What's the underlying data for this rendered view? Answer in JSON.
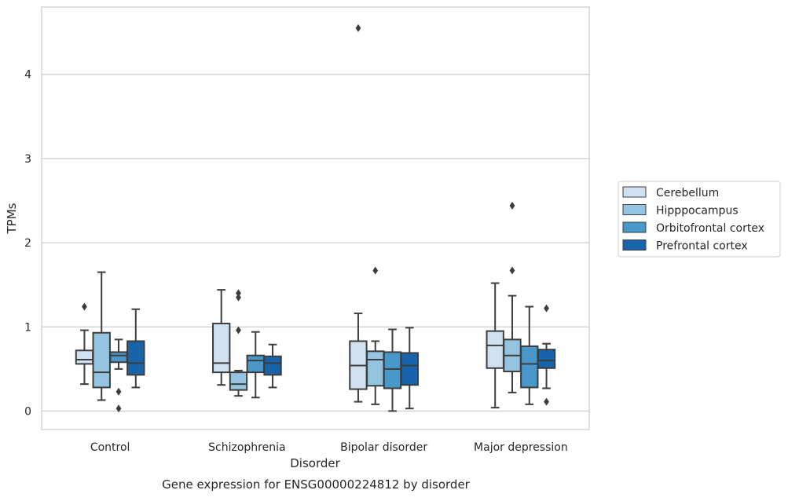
{
  "chart_data": {
    "type": "box",
    "caption": "Gene expression for ENSG00000224812 by disorder",
    "xlabel": "Disorder",
    "ylabel": "TPMs",
    "ylim": [
      -0.22,
      4.8
    ],
    "yticks": [
      0,
      1,
      2,
      3,
      4
    ],
    "grid": true,
    "legend_position": "right",
    "categories": [
      "Control",
      "Schizophrenia",
      "Bipolar disorder",
      "Major depression"
    ],
    "series": [
      {
        "name": "Cerebellum",
        "color": "#d0e1f2",
        "boxes": [
          {
            "whisker_low": 0.32,
            "q1": 0.56,
            "median": 0.61,
            "q3": 0.72,
            "whisker_high": 0.96,
            "outliers": [
              1.24
            ]
          },
          {
            "whisker_low": 0.31,
            "q1": 0.46,
            "median": 0.57,
            "q3": 1.04,
            "whisker_high": 1.44,
            "outliers": []
          },
          {
            "whisker_low": 0.11,
            "q1": 0.26,
            "median": 0.54,
            "q3": 0.83,
            "whisker_high": 1.16,
            "outliers": [
              4.55
            ]
          },
          {
            "whisker_low": 0.04,
            "q1": 0.51,
            "median": 0.78,
            "q3": 0.95,
            "whisker_high": 1.52,
            "outliers": []
          }
        ]
      },
      {
        "name": "Hipppocampus",
        "color": "#94c4df",
        "boxes": [
          {
            "whisker_low": 0.13,
            "q1": 0.28,
            "median": 0.46,
            "q3": 0.93,
            "whisker_high": 1.65,
            "outliers": []
          },
          {
            "whisker_low": 0.18,
            "q1": 0.25,
            "median": 0.32,
            "q3": 0.46,
            "whisker_high": 0.48,
            "outliers": [
              0.96,
              1.35,
              1.4
            ]
          },
          {
            "whisker_low": 0.08,
            "q1": 0.3,
            "median": 0.61,
            "q3": 0.71,
            "whisker_high": 0.83,
            "outliers": [
              1.67
            ]
          },
          {
            "whisker_low": 0.22,
            "q1": 0.47,
            "median": 0.66,
            "q3": 0.85,
            "whisker_high": 1.37,
            "outliers": [
              1.67,
              2.44
            ]
          }
        ]
      },
      {
        "name": "Orbitofrontal cortex",
        "color": "#4a98c9",
        "boxes": [
          {
            "whisker_low": 0.5,
            "q1": 0.58,
            "median": 0.66,
            "q3": 0.7,
            "whisker_high": 0.85,
            "outliers": [
              0.03,
              0.23
            ]
          },
          {
            "whisker_low": 0.16,
            "q1": 0.46,
            "median": 0.6,
            "q3": 0.66,
            "whisker_high": 0.94,
            "outliers": []
          },
          {
            "whisker_low": 0.0,
            "q1": 0.27,
            "median": 0.5,
            "q3": 0.7,
            "whisker_high": 0.97,
            "outliers": []
          },
          {
            "whisker_low": 0.08,
            "q1": 0.28,
            "median": 0.56,
            "q3": 0.77,
            "whisker_high": 1.24,
            "outliers": []
          }
        ]
      },
      {
        "name": "Prefrontal cortex",
        "color": "#1764ab",
        "boxes": [
          {
            "whisker_low": 0.28,
            "q1": 0.43,
            "median": 0.57,
            "q3": 0.83,
            "whisker_high": 1.21,
            "outliers": []
          },
          {
            "whisker_low": 0.28,
            "q1": 0.43,
            "median": 0.57,
            "q3": 0.65,
            "whisker_high": 0.79,
            "outliers": []
          },
          {
            "whisker_low": 0.03,
            "q1": 0.31,
            "median": 0.54,
            "q3": 0.69,
            "whisker_high": 0.99,
            "outliers": []
          },
          {
            "whisker_low": 0.27,
            "q1": 0.51,
            "median": 0.6,
            "q3": 0.73,
            "whisker_high": 0.8,
            "outliers": [
              0.11,
              1.22
            ]
          }
        ]
      }
    ]
  }
}
